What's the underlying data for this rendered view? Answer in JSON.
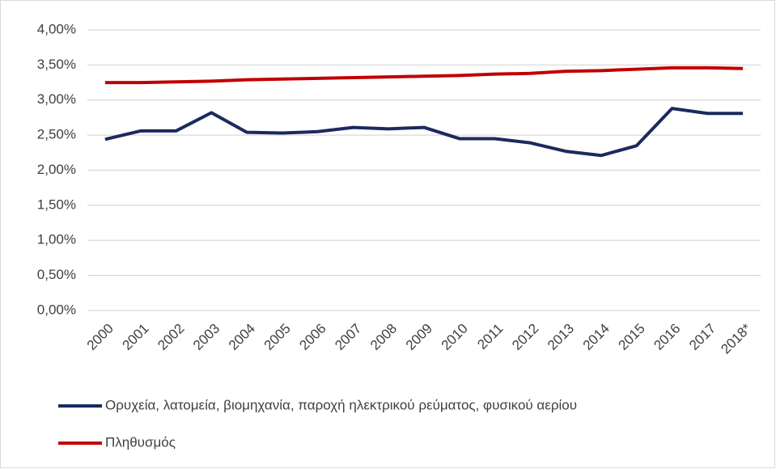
{
  "chart_data": {
    "type": "line",
    "categories": [
      "2000",
      "2001",
      "2002",
      "2003",
      "2004",
      "2005",
      "2006",
      "2007",
      "2008",
      "2009",
      "2010",
      "2011",
      "2012",
      "2013",
      "2014",
      "2015",
      "2016",
      "2017",
      "2018*"
    ],
    "series": [
      {
        "name": "Ορυχεία, λατομεία, βιομηχανία, παροχή ηλεκτρικού ρεύματος, φυσικού αερίου",
        "color": "#1b2a5e",
        "values": [
          2.44,
          2.56,
          2.56,
          2.82,
          2.54,
          2.53,
          2.55,
          2.61,
          2.59,
          2.61,
          2.45,
          2.45,
          2.39,
          2.27,
          2.21,
          2.35,
          2.88,
          2.81,
          2.81
        ]
      },
      {
        "name": "Πληθυσμός",
        "color": "#c00000",
        "values": [
          3.25,
          3.25,
          3.26,
          3.27,
          3.29,
          3.3,
          3.31,
          3.32,
          3.33,
          3.34,
          3.35,
          3.37,
          3.38,
          3.41,
          3.42,
          3.44,
          3.46,
          3.46,
          3.45
        ]
      }
    ],
    "ylim": [
      0,
      4
    ],
    "yticks": [
      {
        "value": 0,
        "label": "0,00%"
      },
      {
        "value": 0.5,
        "label": "0,50%"
      },
      {
        "value": 1,
        "label": "1,00%"
      },
      {
        "value": 1.5,
        "label": "1,50%"
      },
      {
        "value": 2,
        "label": "2,00%"
      },
      {
        "value": 2.5,
        "label": "2,50%"
      },
      {
        "value": 3,
        "label": "3,00%"
      },
      {
        "value": 3.5,
        "label": "3,50%"
      },
      {
        "value": 4,
        "label": "4,00%"
      }
    ],
    "grid": true
  }
}
